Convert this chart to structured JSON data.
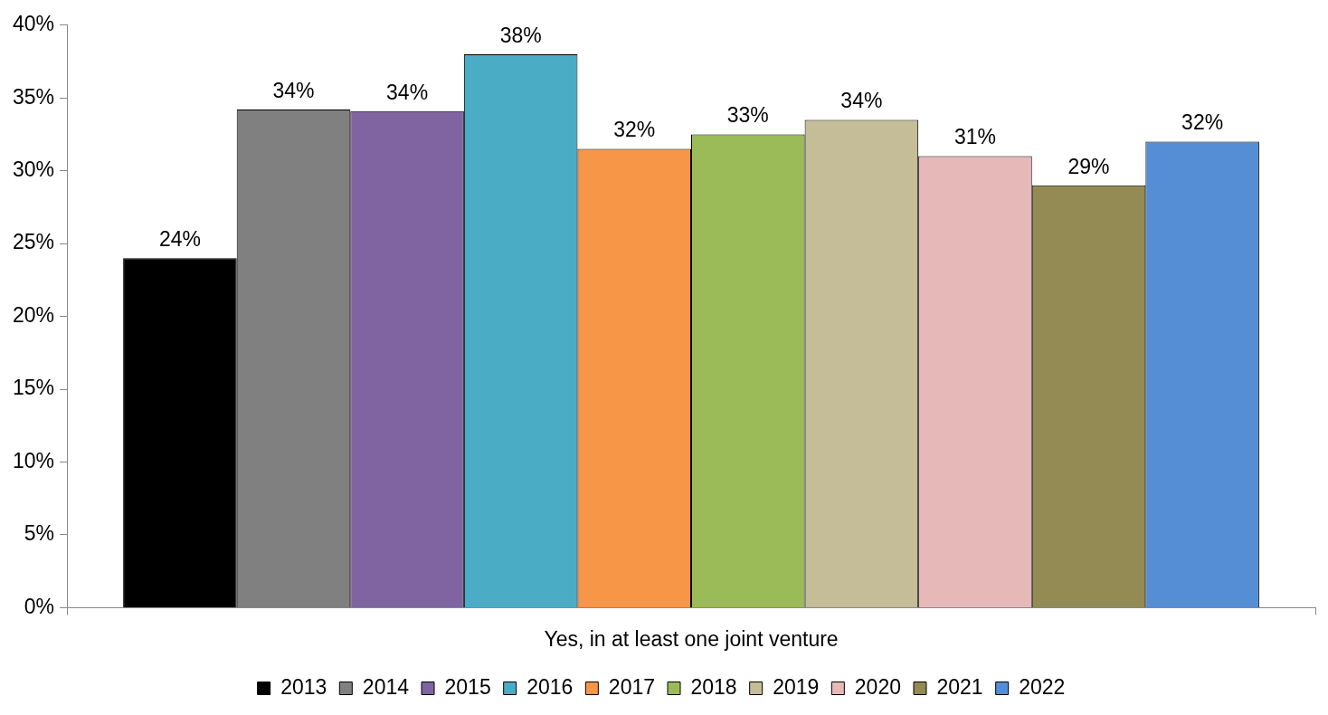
{
  "chart_data": {
    "type": "bar",
    "categories": [
      "Yes, in at least one joint venture"
    ],
    "series": [
      {
        "name": "2013",
        "color": "#000000",
        "values": [
          24
        ],
        "value_labels": [
          "24%"
        ]
      },
      {
        "name": "2014",
        "color": "#808080",
        "values": [
          34.2
        ],
        "value_labels": [
          "34%"
        ]
      },
      {
        "name": "2015",
        "color": "#8064a2",
        "values": [
          34.1
        ],
        "value_labels": [
          "34%"
        ]
      },
      {
        "name": "2016",
        "color": "#4bacc6",
        "values": [
          38
        ],
        "value_labels": [
          "38%"
        ]
      },
      {
        "name": "2017",
        "color": "#f79646",
        "values": [
          31.5
        ],
        "value_labels": [
          "32%"
        ]
      },
      {
        "name": "2018",
        "color": "#9bbb59",
        "values": [
          32.5
        ],
        "value_labels": [
          "33%"
        ]
      },
      {
        "name": "2019",
        "color": "#c4bd97",
        "values": [
          33.5
        ],
        "value_labels": [
          "34%"
        ]
      },
      {
        "name": "2020",
        "color": "#e6b9b8",
        "values": [
          31
        ],
        "value_labels": [
          "31%"
        ]
      },
      {
        "name": "2021",
        "color": "#948a54",
        "values": [
          29
        ],
        "value_labels": [
          "29%"
        ]
      },
      {
        "name": "2022",
        "color": "#558ed5",
        "values": [
          32
        ],
        "value_labels": [
          "32%"
        ]
      }
    ],
    "ylim": [
      0,
      40
    ],
    "yticks": [
      {
        "value": 0,
        "label": "0%"
      },
      {
        "value": 5,
        "label": "5%"
      },
      {
        "value": 10,
        "label": "10%"
      },
      {
        "value": 15,
        "label": "15%"
      },
      {
        "value": 20,
        "label": "20%"
      },
      {
        "value": 25,
        "label": "25%"
      },
      {
        "value": 30,
        "label": "30%"
      },
      {
        "value": 35,
        "label": "35%"
      },
      {
        "value": 40,
        "label": "40%"
      }
    ],
    "grid": false,
    "legend": "bottom"
  }
}
